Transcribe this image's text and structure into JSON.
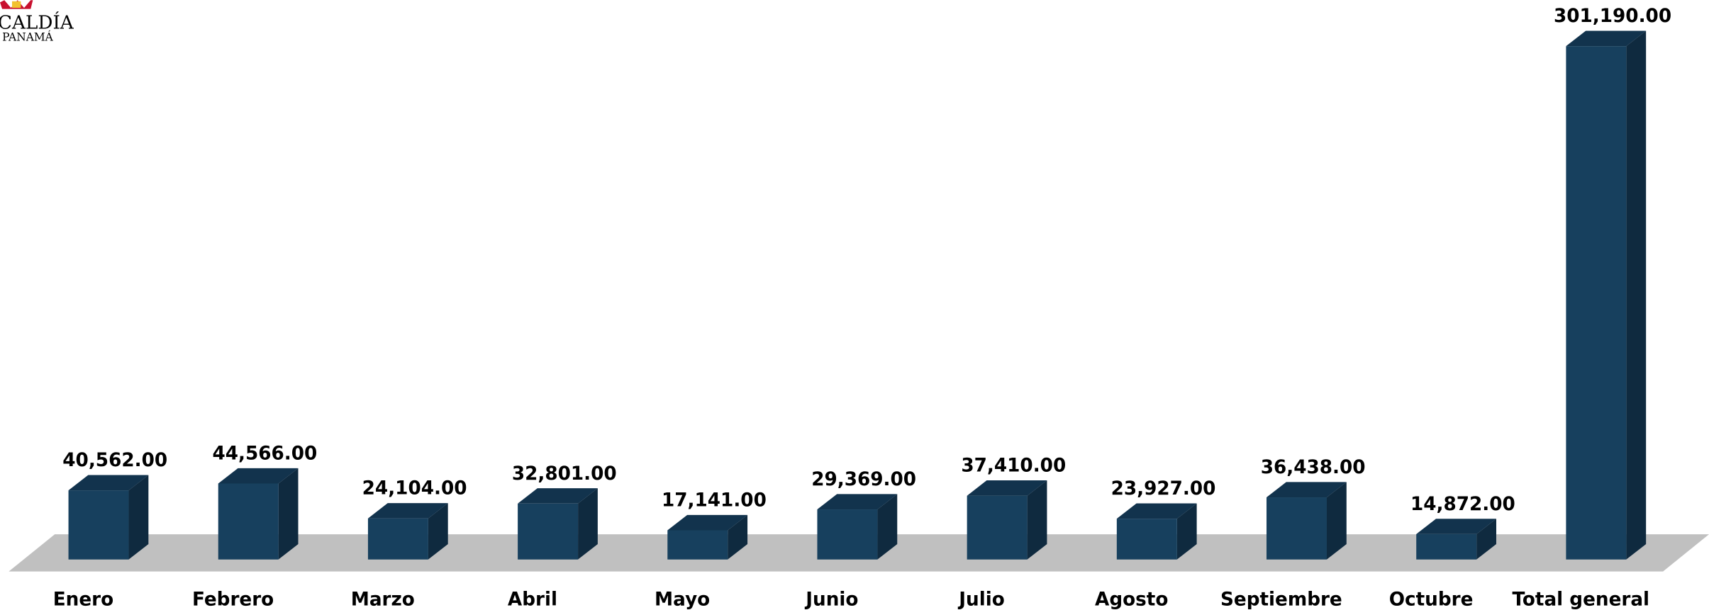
{
  "logo": {
    "line1": "CALDÍA",
    "line2": "PANAMÁ"
  },
  "chart_data": {
    "type": "bar3d",
    "categories": [
      "Enero",
      "Febrero",
      "Marzo",
      "Abril",
      "Mayo",
      "Junio",
      "Julio",
      "Agosto",
      "Septiembre",
      "Octubre",
      "Total general"
    ],
    "values": [
      40562,
      44566,
      24104,
      32801,
      17141,
      29369,
      37410,
      23927,
      36438,
      14872,
      301190
    ],
    "value_labels": [
      "40,562.00",
      "44,566.00",
      "24,104.00",
      "32,801.00",
      "17,141.00",
      "29,369.00",
      "37,410.00",
      "23,927.00",
      "36,438.00",
      "14,872.00",
      "301,190.00"
    ],
    "color": "#17405e"
  }
}
